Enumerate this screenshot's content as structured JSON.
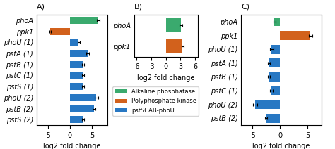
{
  "chart_data": [
    {
      "type": "bar",
      "orientation": "horizontal",
      "title": "A)",
      "categories": [
        "phoA",
        "ppk1",
        "phoU (1)",
        "pstA (1)",
        "pstB (1)",
        "pstC (1)",
        "pstS (1)",
        "phoU (2)",
        "pstB (2)",
        "pstS (2)"
      ],
      "values": [
        6.5,
        -4.5,
        2.0,
        4.0,
        3.0,
        3.0,
        3.0,
        6.0,
        5.5,
        3.0
      ],
      "errors": [
        0.3,
        0.2,
        0.25,
        0.35,
        0.2,
        0.25,
        0.2,
        0.4,
        0.35,
        0.2
      ],
      "colors": [
        "#3aaa6e",
        "#d2611c",
        "#2878c3",
        "#2878c3",
        "#2878c3",
        "#2878c3",
        "#2878c3",
        "#2878c3",
        "#2878c3",
        "#2878c3"
      ],
      "xlim": [
        -7.5,
        8.5
      ],
      "xticks": [
        -5,
        0,
        5
      ],
      "x_label": "log2 fold change",
      "grid": false
    },
    {
      "type": "bar",
      "orientation": "horizontal",
      "title": "B)",
      "categories": [
        "phoA",
        "ppk1"
      ],
      "values": [
        3.1,
        3.4
      ],
      "errors": [
        0.3,
        0.2
      ],
      "colors": [
        "#3aaa6e",
        "#d2611c"
      ],
      "xlim": [
        -6.5,
        6.5
      ],
      "xticks": [
        -6,
        -3,
        0,
        3,
        6
      ],
      "x_label": "log2 fold change",
      "grid": false
    },
    {
      "type": "bar",
      "orientation": "horizontal",
      "title": "C)",
      "categories": [
        "phoA",
        "ppk1",
        "phoU (1)",
        "pstA (1)",
        "pstB (1)",
        "pstC (1)",
        "phoU (2)",
        "pstB (2)"
      ],
      "values": [
        -1.0,
        5.5,
        -1.5,
        -2.0,
        -2.0,
        -1.5,
        -4.5,
        -2.5
      ],
      "errors": [
        0.2,
        0.35,
        0.3,
        0.25,
        0.2,
        0.25,
        0.35,
        0.2
      ],
      "colors": [
        "#3aaa6e",
        "#d2611c",
        "#2878c3",
        "#2878c3",
        "#2878c3",
        "#2878c3",
        "#2878c3",
        "#2878c3"
      ],
      "xlim": [
        -7.0,
        7.5
      ],
      "xticks": [
        -5,
        0,
        5
      ],
      "x_label": "log2 fold change",
      "grid": false
    }
  ],
  "legend": {
    "entries": [
      {
        "name": "Alkaline phosphatase",
        "color": "#3aaa6e"
      },
      {
        "name": "Polyphosphate kinase",
        "color": "#d2611c"
      },
      {
        "name": "pstSCAB-phoU",
        "color": "#2878c3"
      }
    ]
  }
}
